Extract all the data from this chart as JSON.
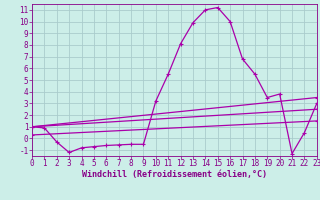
{
  "background_color": "#cceee8",
  "grid_color": "#aacccc",
  "line_color": "#aa00aa",
  "marker_color": "#aa00aa",
  "xlabel": "Windchill (Refroidissement éolien,°C)",
  "xlim": [
    0,
    23
  ],
  "ylim": [
    -1.5,
    11.5
  ],
  "xticks": [
    0,
    1,
    2,
    3,
    4,
    5,
    6,
    7,
    8,
    9,
    10,
    11,
    12,
    13,
    14,
    15,
    16,
    17,
    18,
    19,
    20,
    21,
    22,
    23
  ],
  "yticks": [
    -1,
    0,
    1,
    2,
    3,
    4,
    5,
    6,
    7,
    8,
    9,
    10,
    11
  ],
  "font_color": "#880088",
  "line1_x": [
    0,
    1,
    2,
    3,
    4,
    5,
    6,
    7,
    8,
    9,
    10,
    11,
    12,
    13,
    14,
    15,
    16,
    17,
    18,
    19,
    20,
    21,
    22,
    23
  ],
  "line1_y": [
    1.0,
    0.9,
    -0.3,
    -1.2,
    -0.8,
    -0.7,
    -0.6,
    -0.55,
    -0.5,
    -0.5,
    3.2,
    5.5,
    8.1,
    9.9,
    11.0,
    11.2,
    10.0,
    6.8,
    5.5,
    3.5,
    3.8,
    -1.3,
    0.5,
    3.0
  ],
  "line2_x": [
    0,
    23
  ],
  "line2_y": [
    1.0,
    3.5
  ],
  "line3_x": [
    0,
    23
  ],
  "line3_y": [
    1.0,
    2.5
  ],
  "line4_x": [
    0,
    23
  ],
  "line4_y": [
    0.3,
    1.5
  ],
  "tick_fontsize": 5.5,
  "label_fontsize": 6.0,
  "linewidth": 0.9,
  "markersize": 3.5
}
